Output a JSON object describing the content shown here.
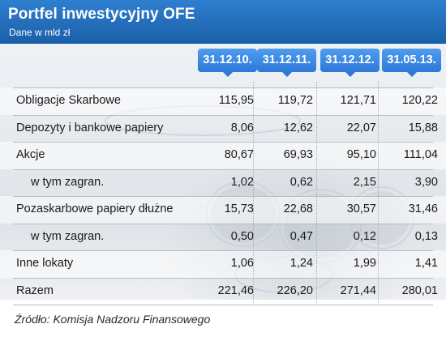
{
  "title": "Portfel inwestycyjny OFE",
  "subtitle": "Dane w mld zł",
  "source": "Źródło: Komisja Nadzoru Finansowego",
  "colors": {
    "header": "#1f66b3",
    "badge": "#3d8ae6"
  },
  "chart_data": {
    "type": "table",
    "columns": [
      "31.12.10.",
      "31.12.11.",
      "31.12.12.",
      "31.05.13."
    ],
    "rows": [
      {
        "label": "Obligacje Skarbowe",
        "values": [
          "115,95",
          "119,72",
          "121,71",
          "120,22"
        ]
      },
      {
        "label": "Depozyty i bankowe papiery",
        "values": [
          "8,06",
          "12,62",
          "22,07",
          "15,88"
        ]
      },
      {
        "label": "Akcje",
        "values": [
          "80,67",
          "69,93",
          "95,10",
          "111,04"
        ]
      },
      {
        "label": "w tym zagran.",
        "values": [
          "1,02",
          "0,62",
          "2,15",
          "3,90"
        ]
      },
      {
        "label": "Pozaskarbowe papiery dłużne",
        "values": [
          "15,73",
          "22,68",
          "30,57",
          "31,46"
        ]
      },
      {
        "label": "w tym zagran.",
        "values": [
          "0,50",
          "0,47",
          "0,12",
          "0,13"
        ]
      },
      {
        "label": "Inne lokaty",
        "values": [
          "1,06",
          "1,24",
          "1,99",
          "1,41"
        ]
      },
      {
        "label": "Razem",
        "values": [
          "221,46",
          "226,20",
          "271,44",
          "280,01"
        ]
      }
    ]
  }
}
